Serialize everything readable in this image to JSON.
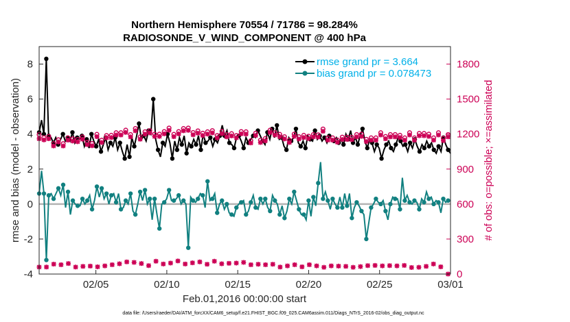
{
  "chart_data": {
    "type": "line",
    "title": [
      "Northern Hemisphere 70554 / 71786 = 98.284%",
      "RADIOSONDE_V_WIND_COMPONENT @ 400 hPa"
    ],
    "xlabel": "Feb.01,2016 00:00:00 start",
    "ylabel_left": "rmse and bias (model - observation)",
    "ylabel_right": "# of obs: o=possible; ×=assimilated",
    "footnote": "data file: /Users/raeder/DAI/ATM_forcXX/CAM6_setup/f.e21.FHIST_BGC.f09_025.CAM6assim.011/Diags_NTrS_2016-02/obs_diag_output.nc",
    "xlim": [
      1,
      30
    ],
    "x_ticks": [
      {
        "x": 5,
        "label": "02/05"
      },
      {
        "x": 10,
        "label": "02/10"
      },
      {
        "x": 15,
        "label": "02/15"
      },
      {
        "x": 20,
        "label": "02/20"
      },
      {
        "x": 25,
        "label": "02/25"
      },
      {
        "x": 30,
        "label": "03/01"
      }
    ],
    "ylim_left": [
      -4,
      9
    ],
    "y_ticks_left": [
      -4,
      -2,
      0,
      2,
      4,
      6,
      8
    ],
    "ylim_right": [
      0,
      1950
    ],
    "y_ticks_right": [
      0,
      300,
      600,
      900,
      1200,
      1500,
      1800
    ],
    "zero_line": 0,
    "legend": [
      "rmse grand pr = 3.664",
      "bias grand pr = 0.078473"
    ],
    "colors": {
      "rmse": "#000000",
      "bias": "#118080",
      "obs": "#cc0055",
      "legend_text": "#00b0e8",
      "zero_line": "#b3b3b3"
    },
    "series": [
      {
        "name": "rmse",
        "axis": "left",
        "values": [
          4.1,
          4.8,
          4.0,
          8.3,
          3.9,
          3.8,
          3.5,
          3.8,
          3.4,
          3.7,
          4.0,
          3.6,
          3.8,
          3.6,
          4.1,
          3.5,
          3.8,
          3.7,
          3.9,
          3.3,
          3.7,
          3.2,
          4.0,
          3.6,
          3.3,
          3.7,
          3.0,
          3.4,
          3.8,
          3.1,
          3.5,
          3.3,
          3.8,
          3.1,
          3.5,
          3.0,
          2.6,
          3.4,
          2.7,
          3.8,
          3.3,
          3.9,
          4.6,
          3.7,
          3.9,
          3.6,
          4.2,
          4.0,
          6.0,
          3.7,
          3.1,
          2.7,
          3.5,
          3.3,
          4.0,
          3.5,
          2.6,
          3.6,
          3.1,
          3.8,
          3.4,
          3.9,
          2.9,
          3.5,
          3.3,
          3.7,
          3.4,
          3.9,
          3.1,
          4.0,
          3.5,
          3.6,
          3.8,
          3.3,
          3.7,
          3.5,
          3.9,
          4.5,
          3.9,
          4.2,
          3.5,
          3.4,
          3.2,
          3.8,
          3.9,
          3.6,
          3.2,
          3.8,
          3.5,
          3.7,
          3.9,
          3.8,
          4.2,
          3.9,
          3.6,
          3.4,
          4.1,
          3.7,
          4.3,
          3.8,
          4.5,
          3.7,
          3.8,
          3.3,
          3.1,
          3.8,
          3.6,
          3.8,
          4.3,
          3.5,
          3.3,
          3.6,
          3.2,
          3.9,
          3.7,
          3.6,
          4.2,
          3.7,
          3.9,
          3.6,
          3.8,
          3.5,
          3.9,
          3.7,
          3.6,
          3.8,
          3.5,
          3.7,
          3.4,
          4.0,
          3.7,
          4.2,
          3.5,
          3.8,
          3.4,
          3.9,
          4.3,
          3.6,
          3.2,
          3.7,
          3.5,
          3.0,
          3.4,
          3.2,
          2.6,
          3.1,
          3.4,
          3.6,
          3.2,
          3.0,
          3.4,
          3.8,
          3.6,
          3.3,
          3.4,
          3.0,
          3.5,
          3.2,
          3.7,
          3.3,
          3.0,
          3.4,
          3.2,
          3.6,
          3.3,
          3.5,
          3.1,
          2.9,
          3.3,
          3.0,
          3.8,
          3.4,
          3.1,
          2.9
        ]
      },
      {
        "name": "bias",
        "axis": "left",
        "values": [
          0.6,
          1.9,
          0.6,
          -3.2,
          0.5,
          0.6,
          0.3,
          0.6,
          0.9,
          0.5,
          1.1,
          -0.2,
          0.7,
          -0.6,
          0.2,
          0.0,
          -0.1,
          -0.1,
          0.3,
          0.0,
          0.2,
          0.5,
          -0.3,
          0.2,
          1.0,
          0.4,
          0.9,
          0.3,
          0.6,
          0.0,
          0.5,
          0.6,
          0.1,
          0.6,
          -0.3,
          -0.2,
          0.2,
          0.0,
          0.6,
          -0.4,
          -0.6,
          0.0,
          0.7,
          0.2,
          0.8,
          0.0,
          0.3,
          -0.9,
          0.3,
          -0.6,
          -1.4,
          0.0,
          0.1,
          0.3,
          0.8,
          0.2,
          0.2,
          0.3,
          0.5,
          0.0,
          0.2,
          0.0,
          -2.5,
          0.4,
          0.2,
          0.1,
          0.3,
          0.6,
          0.5,
          -0.2,
          1.3,
          0.2,
          0.3,
          0.6,
          -0.5,
          0.0,
          0.2,
          -0.3,
          0.0,
          -0.5,
          -0.6,
          -0.7,
          -0.2,
          0.0,
          0.1,
          0.2,
          -0.6,
          -0.4,
          0.1,
          0.5,
          -0.2,
          -0.3,
          0.3,
          0.0,
          0.3,
          -0.2,
          -0.4,
          0.5,
          0.2,
          0.0,
          -0.6,
          -0.1,
          -0.8,
          -0.4,
          0.3,
          0.0,
          0.7,
          0.2,
          -0.3,
          -0.6,
          -0.6,
          -0.9,
          0.2,
          -0.7,
          0.4,
          -0.1,
          1.2,
          2.4,
          0.3,
          0.7,
          0.2,
          -0.3,
          0.3,
          0.0,
          -0.2,
          0.4,
          -0.2,
          0.6,
          -0.1,
          0.6,
          -0.8,
          -0.2,
          0.1,
          -0.1,
          -0.4,
          -0.6,
          -2.0,
          -1.1,
          -0.2,
          0.0,
          0.3,
          0.1,
          0.0,
          0.2,
          -0.4,
          -0.9,
          0.0,
          0.4,
          0.3,
          0.3,
          -0.3,
          1.5,
          0.2,
          0.5,
          0.1,
          0.0,
          0.2,
          0.1,
          -0.3,
          0.3,
          0.1,
          0.7,
          0.3,
          0.4,
          0.0,
          0.2,
          0.1,
          -0.5,
          0.3,
          0.1,
          0.2,
          0.2
        ]
      },
      {
        "name": "obs_possible",
        "axis": "right",
        "values": [
          1178,
          1130,
          1152,
          1082,
          1162,
          1140,
          1100,
          1060,
          1134,
          1068,
          1100,
          1128,
          1150,
          1080,
          1142,
          1104,
          1136,
          1172,
          1158,
          1158,
          1112,
          1130,
          1102,
          1118,
          1180,
          1150,
          1130,
          1156,
          1170,
          1198,
          1172,
          1146,
          1194,
          1176,
          1194,
          1180,
          1216,
          1212,
          1178,
          1188,
          1230,
          1168,
          1158,
          1176,
          1202,
          1178,
          1212,
          1176,
          1182,
          1162,
          1182,
          1154,
          1204,
          1214,
          1234,
          1210,
          1180,
          1220,
          1204,
          1162,
          1230,
          1146,
          1234,
          1186,
          1196,
          1158,
          1210,
          1178,
          1190,
          1226,
          1202,
          1178,
          1212,
          1202,
          1170,
          1184,
          1206,
          1178,
          1178,
          1176,
          1186,
          1194,
          1170,
          1208,
          1204,
          1236,
          1202,
          1138,
          1126,
          1130,
          1190,
          1244,
          1130,
          1168,
          1144,
          1198,
          1216,
          1178,
          1194,
          1152,
          1180,
          1230,
          1160,
          1180,
          1130,
          1122,
          1182,
          1194,
          1160,
          1172,
          1172,
          1180,
          1164,
          1136,
          1178,
          1174,
          1176,
          1234,
          1226,
          1126,
          1150,
          1162,
          1150,
          1138,
          1132,
          1166,
          1156,
          1170,
          1156,
          1174,
          1154,
          1202,
          1178,
          1150,
          1182,
          1182,
          1138,
          1178,
          1150,
          1174,
          1150,
          1156,
          1194,
          1150,
          1162,
          1158,
          1178,
          1198,
          1178,
          1186,
          1172,
          1188,
          1150,
          1200,
          1194,
          1162,
          1150,
          1134,
          1188,
          1146,
          1188,
          1162,
          1182,
          1186,
          1150,
          1164,
          1194,
          1174,
          1146,
          1200,
          1178,
          1126
        ]
      },
      {
        "name": "obs_assimilated",
        "axis": "right",
        "values": [
          1160,
          1130,
          1150,
          1080,
          1160,
          1138,
          1098,
          1058,
          1132,
          1066,
          1098,
          1126,
          1148,
          1078,
          1140,
          1102,
          1134,
          1170,
          1156,
          1156,
          1110,
          1128,
          1100,
          1116,
          1178,
          1148,
          1128,
          1154,
          1168,
          1196,
          1170,
          1144,
          1192,
          1174,
          1192,
          1178,
          1214,
          1210,
          1176,
          1186,
          1228,
          1166,
          1156,
          1174,
          1200,
          1176,
          1210,
          1174,
          1180,
          1160,
          1180,
          1152,
          1202,
          1212,
          1232,
          1208,
          1178,
          1218,
          1202,
          1160,
          1228,
          1144,
          1232,
          1184,
          1194,
          1156,
          1208,
          1176,
          1188,
          1224,
          1200,
          1176,
          1210,
          1200,
          1168,
          1182,
          1204,
          1176,
          1176,
          1174,
          1184,
          1192,
          1168,
          1206,
          1202,
          1234,
          1200,
          1136,
          1124,
          1128,
          1188,
          1242,
          1128,
          1166,
          1142,
          1196,
          1214,
          1176,
          1192,
          1150,
          1178,
          1228,
          1158,
          1178,
          1128,
          1120,
          1180,
          1192,
          1158,
          1170,
          1170,
          1178,
          1162,
          1134,
          1176,
          1172,
          1174,
          1232,
          1224,
          1124,
          1148,
          1160,
          1148,
          1136,
          1130,
          1164,
          1154,
          1168,
          1154,
          1172,
          1152,
          1200,
          1176,
          1148,
          1180,
          1180,
          1136,
          1176,
          1148,
          1172,
          1148,
          1154,
          1192,
          1148,
          1160,
          1156,
          1176,
          1196,
          1176,
          1184,
          1170,
          1186,
          1148,
          1198,
          1192,
          1160,
          1148,
          1132,
          1186,
          1144,
          1186,
          1160,
          1180,
          1184,
          1148,
          1162,
          1192,
          1172,
          1144,
          1198,
          1176,
          1124
        ]
      },
      {
        "name": "obs_assimilated_bias_level",
        "axis": "right",
        "values": [
          60,
          62,
          55,
          60,
          58,
          70,
          85,
          74,
          65,
          80,
          68,
          75,
          90,
          72,
          70,
          60,
          84,
          70,
          66,
          75,
          80,
          68,
          70,
          55,
          62,
          58,
          72,
          70,
          76,
          82,
          80,
          68,
          74,
          88,
          90,
          95,
          104,
          108,
          96,
          100,
          92,
          98,
          90,
          86,
          80,
          72,
          100,
          96,
          110,
          104,
          90,
          86,
          84,
          92,
          94,
          88,
          100,
          112,
          104,
          98,
          86,
          88,
          92,
          96,
          110,
          100,
          104,
          88,
          90,
          84,
          98,
          104,
          110,
          100,
          92,
          88,
          80,
          84,
          92,
          110,
          100,
          94,
          104,
          112,
          100,
          92,
          86,
          80,
          76,
          90,
          84,
          72,
          66,
          80,
          70,
          76,
          84,
          78,
          70,
          60,
          66,
          72,
          70,
          78,
          74,
          80,
          76,
          68,
          62,
          70,
          74,
          80,
          64,
          60,
          70,
          72,
          66,
          58,
          62,
          56,
          70,
          74,
          60,
          68,
          76,
          62,
          66,
          70,
          64,
          58,
          62,
          70,
          64,
          60,
          66,
          72,
          68,
          62,
          74,
          60,
          62,
          70,
          64,
          66,
          72,
          58,
          64,
          70,
          60,
          66,
          74,
          80,
          62,
          56,
          60,
          64,
          58,
          70,
          62,
          66,
          100,
          92,
          86,
          80,
          70,
          62,
          58,
          12,
          0,
          40
        ]
      }
    ]
  }
}
